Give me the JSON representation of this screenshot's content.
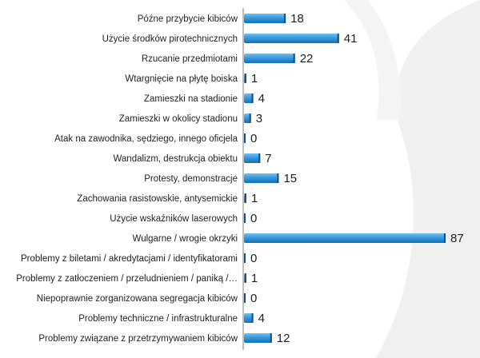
{
  "colors": {
    "bar_top": "#6fc1f0",
    "bar_bottom": "#1270b8",
    "bar_cap": "#0b4f8c",
    "axis": "#7f7f7f",
    "background_shape": "#f0f0f0",
    "text": "#1f1f1f"
  },
  "chart_data": {
    "type": "bar",
    "orientation": "horizontal",
    "title": "",
    "xlabel": "",
    "ylabel": "",
    "xlim": [
      0,
      87
    ],
    "grid": false,
    "legend": "none",
    "categories": [
      "Późne przybycie kibiców",
      "Użycie środków pirotechnicznych",
      "Rzucanie przedmiotami",
      "Wtargnięcie na płytę boiska",
      "Zamieszki na stadionie",
      "Zamieszki w okolicy stadionu",
      "Atak na zawodnika, sędziego, innego oficjela",
      "Wandalizm, destrukcja obiektu",
      "Protesty, demonstracje",
      "Zachowania rasistowskie, antysemickie",
      "Użycie wskaźników laserowych",
      "Wulgarne / wrogie okrzyki",
      "Problemy z biletami / akredytacjami / identyfikatorami",
      "Problemy z zatłoczeniem / przeludnieniem / paniką /…",
      "Niepoprawnie zorganizowana segregacja kibiców",
      "Problemy techniczne / infrastrukturalne",
      "Problemy związane z przetrzymywaniem kibiców"
    ],
    "values": [
      18,
      41,
      22,
      1,
      4,
      3,
      0,
      7,
      15,
      1,
      0,
      87,
      0,
      1,
      0,
      4,
      12
    ]
  }
}
